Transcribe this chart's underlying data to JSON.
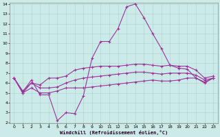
{
  "xlabel": "Windchill (Refroidissement éolien,°C)",
  "background_color": "#cceae8",
  "line_color": "#993399",
  "x": [
    0,
    1,
    2,
    3,
    4,
    5,
    6,
    7,
    8,
    9,
    10,
    11,
    12,
    13,
    14,
    15,
    16,
    17,
    18,
    19,
    20,
    21,
    22,
    23
  ],
  "line1": [
    6.5,
    5.1,
    6.3,
    4.8,
    4.8,
    2.2,
    3.0,
    2.9,
    4.7,
    8.5,
    10.2,
    10.2,
    11.5,
    13.7,
    14.0,
    12.6,
    11.0,
    9.5,
    7.8,
    7.5,
    7.4,
    6.5,
    6.1,
    6.5
  ],
  "line2": [
    6.5,
    5.0,
    6.0,
    5.8,
    6.5,
    6.5,
    6.7,
    7.3,
    7.5,
    7.6,
    7.7,
    7.7,
    7.7,
    7.8,
    7.9,
    7.9,
    7.8,
    7.7,
    7.8,
    7.7,
    7.7,
    7.3,
    6.5,
    6.7
  ],
  "line3": [
    6.5,
    5.2,
    6.0,
    5.5,
    5.5,
    5.6,
    6.0,
    6.3,
    6.5,
    6.6,
    6.7,
    6.8,
    6.9,
    7.0,
    7.1,
    7.1,
    7.0,
    6.9,
    7.0,
    7.0,
    7.0,
    6.8,
    6.3,
    6.5
  ],
  "line4": [
    6.5,
    5.0,
    5.5,
    5.0,
    5.0,
    5.2,
    5.5,
    5.5,
    5.5,
    5.6,
    5.7,
    5.8,
    5.9,
    6.0,
    6.1,
    6.2,
    6.3,
    6.2,
    6.2,
    6.3,
    6.5,
    6.5,
    6.0,
    6.5
  ],
  "ylim": [
    2,
    14
  ],
  "xlim": [
    -0.5,
    23.5
  ],
  "yticks": [
    2,
    3,
    4,
    5,
    6,
    7,
    8,
    9,
    10,
    11,
    12,
    13,
    14
  ],
  "xticks": [
    0,
    1,
    2,
    3,
    4,
    5,
    6,
    7,
    8,
    9,
    10,
    11,
    12,
    13,
    14,
    15,
    16,
    17,
    18,
    19,
    20,
    21,
    22,
    23
  ]
}
